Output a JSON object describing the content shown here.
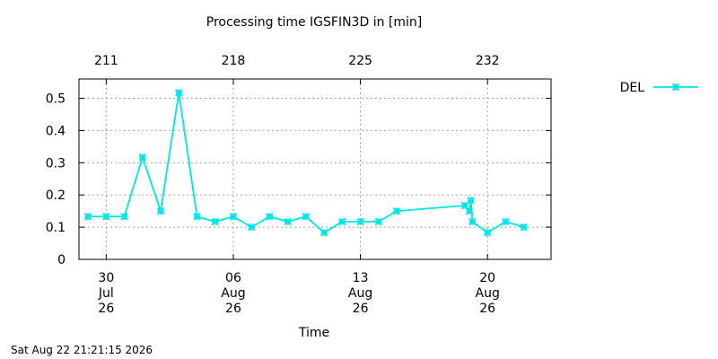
{
  "chart_data": {
    "type": "line",
    "title": "Processing time IGSFIN3D in [min]",
    "xlabel": "Time",
    "ylabel": "",
    "ylim": [
      0,
      0.56
    ],
    "xlim": [
      "2026-07-28T12:00",
      "2026-08-23T12:00"
    ],
    "grid": true,
    "legend_position": "top-right, outside plot",
    "yticks": [
      "0",
      "0.1",
      "0.2",
      "0.3",
      "0.4",
      "0.5"
    ],
    "ytick_values": [
      0,
      0.1,
      0.2,
      0.3,
      0.4,
      0.5
    ],
    "xticks": [
      {
        "date": "2026-07-30",
        "line1": "30",
        "line2": "Jul",
        "line3": "26"
      },
      {
        "date": "2026-08-06",
        "line1": "06",
        "line2": "Aug",
        "line3": "26"
      },
      {
        "date": "2026-08-13",
        "line1": "13",
        "line2": "Aug",
        "line3": "26"
      },
      {
        "date": "2026-08-20",
        "line1": "20",
        "line2": "Aug",
        "line3": "26"
      }
    ],
    "x2ticks": [
      {
        "date": "2026-07-30",
        "label": "211"
      },
      {
        "date": "2026-08-06",
        "label": "218"
      },
      {
        "date": "2026-08-13",
        "label": "225"
      },
      {
        "date": "2026-08-20",
        "label": "232"
      }
    ],
    "series": [
      {
        "name": "DEL",
        "color": "#00e5e5",
        "marker": "x-star",
        "points": [
          {
            "x": "2026-07-29",
            "y": 0.133
          },
          {
            "x": "2026-07-30",
            "y": 0.133
          },
          {
            "x": "2026-07-31",
            "y": 0.133
          },
          {
            "x": "2026-08-01",
            "y": 0.317
          },
          {
            "x": "2026-08-02",
            "y": 0.15
          },
          {
            "x": "2026-08-03",
            "y": 0.517
          },
          {
            "x": "2026-08-04",
            "y": 0.133
          },
          {
            "x": "2026-08-05",
            "y": 0.117
          },
          {
            "x": "2026-08-06",
            "y": 0.133
          },
          {
            "x": "2026-08-07",
            "y": 0.1
          },
          {
            "x": "2026-08-08",
            "y": 0.133
          },
          {
            "x": "2026-08-09",
            "y": 0.117
          },
          {
            "x": "2026-08-10",
            "y": 0.133
          },
          {
            "x": "2026-08-11",
            "y": 0.083
          },
          {
            "x": "2026-08-12",
            "y": 0.117
          },
          {
            "x": "2026-08-13",
            "y": 0.117
          },
          {
            "x": "2026-08-14",
            "y": 0.117
          },
          {
            "x": "2026-08-15",
            "y": 0.15
          },
          {
            "x": "2026-08-18T18:00",
            "y": 0.167
          },
          {
            "x": "2026-08-19T00:00",
            "y": 0.15
          },
          {
            "x": "2026-08-19T02:00",
            "y": 0.183
          },
          {
            "x": "2026-08-19T04:00",
            "y": 0.117
          },
          {
            "x": "2026-08-20",
            "y": 0.083
          },
          {
            "x": "2026-08-21",
            "y": 0.117
          },
          {
            "x": "2026-08-22",
            "y": 0.1
          }
        ]
      }
    ]
  },
  "footer": {
    "timestamp": "Sat Aug 22 21:21:15 2026"
  }
}
